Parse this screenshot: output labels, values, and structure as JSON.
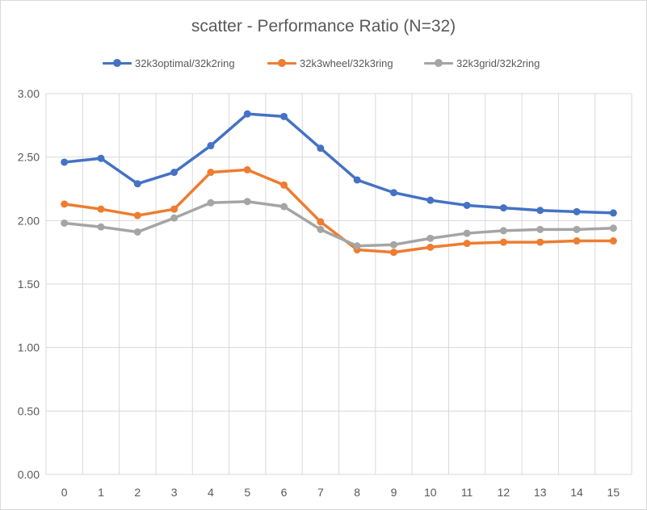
{
  "chart_data": {
    "type": "line",
    "title": "scatter - Performance Ratio (N=32)",
    "xlabel": "",
    "ylabel": "",
    "categories": [
      "0",
      "1",
      "2",
      "3",
      "4",
      "5",
      "6",
      "7",
      "8",
      "9",
      "10",
      "11",
      "12",
      "13",
      "14",
      "15"
    ],
    "ylim": [
      0,
      3
    ],
    "yticks": [
      "0.00",
      "0.50",
      "1.00",
      "1.50",
      "2.00",
      "2.50",
      "3.00"
    ],
    "grid": true,
    "legend_position": "top",
    "series": [
      {
        "name": "32k3optimal/32k2ring",
        "color": "#4472c4",
        "values": [
          2.46,
          2.49,
          2.29,
          2.38,
          2.59,
          2.84,
          2.82,
          2.57,
          2.32,
          2.22,
          2.16,
          2.12,
          2.1,
          2.08,
          2.07,
          2.06
        ]
      },
      {
        "name": "32k3wheel/32k3ring",
        "color": "#ed7d31",
        "values": [
          2.13,
          2.09,
          2.04,
          2.09,
          2.38,
          2.4,
          2.28,
          1.99,
          1.77,
          1.75,
          1.79,
          1.82,
          1.83,
          1.83,
          1.84,
          1.84
        ]
      },
      {
        "name": "32k3grid/32k2ring",
        "color": "#a5a5a5",
        "values": [
          1.98,
          1.95,
          1.91,
          2.02,
          2.14,
          2.15,
          2.11,
          1.93,
          1.8,
          1.81,
          1.86,
          1.9,
          1.92,
          1.93,
          1.93,
          1.94
        ]
      }
    ]
  }
}
